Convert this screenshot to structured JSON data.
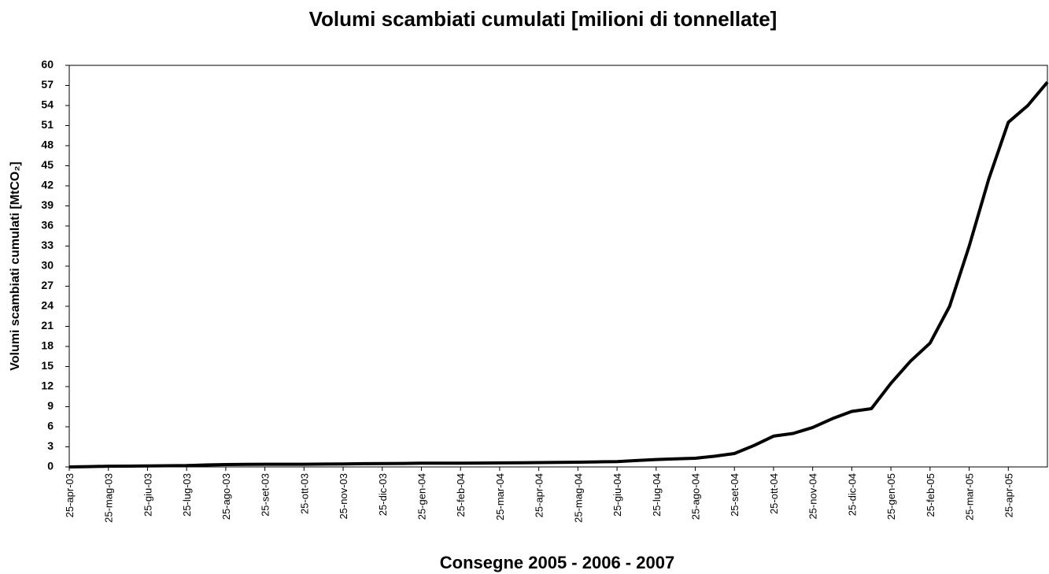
{
  "chart_data": {
    "type": "line",
    "title": "Volumi scambiati cumulati [milioni di tonnellate]",
    "xlabel": "Consegne 2005 - 2006 - 2007",
    "ylabel": "Volumi scambiati cumulati [MtCO₂]",
    "categories": [
      "25-apr-03",
      null,
      "25-mag-03",
      null,
      "25-giu-03",
      null,
      "25-lug-03",
      null,
      "25-ago-03",
      null,
      "25-set-03",
      null,
      "25-ott-03",
      null,
      "25-nov-03",
      null,
      "25-dic-03",
      null,
      "25-gen-04",
      null,
      "25-feb-04",
      null,
      "25-mar-04",
      null,
      "25-apr-04",
      null,
      "25-mag-04",
      null,
      "25-giu-04",
      null,
      "25-lug-04",
      null,
      "25-ago-04",
      null,
      "25-set-04",
      null,
      "25-ott-04",
      null,
      "25-nov-04",
      null,
      "25-dic-04",
      null,
      "25-gen-05",
      null,
      "25-feb-05",
      null,
      "25-mar-05",
      null,
      "25-apr-05",
      null,
      null
    ],
    "values": [
      0,
      0.05,
      0.1,
      0.12,
      0.15,
      0.18,
      0.2,
      0.3,
      0.35,
      0.38,
      0.4,
      0.4,
      0.4,
      0.42,
      0.45,
      0.48,
      0.5,
      0.52,
      0.55,
      0.55,
      0.55,
      0.58,
      0.6,
      0.62,
      0.65,
      0.68,
      0.7,
      0.75,
      0.8,
      0.95,
      1.1,
      1.2,
      1.3,
      1.6,
      2.0,
      3.2,
      4.6,
      5.0,
      5.9,
      7.2,
      8.3,
      8.7,
      12.5,
      15.8,
      18.5,
      24,
      33,
      43,
      51.5,
      54,
      57.5
    ],
    "color": "#000000",
    "ylim": [
      0,
      60
    ],
    "yticks": [
      0,
      3,
      6,
      9,
      12,
      15,
      18,
      21,
      24,
      27,
      30,
      33,
      36,
      39,
      42,
      45,
      48,
      51,
      54,
      57,
      60
    ],
    "grid": false
  }
}
